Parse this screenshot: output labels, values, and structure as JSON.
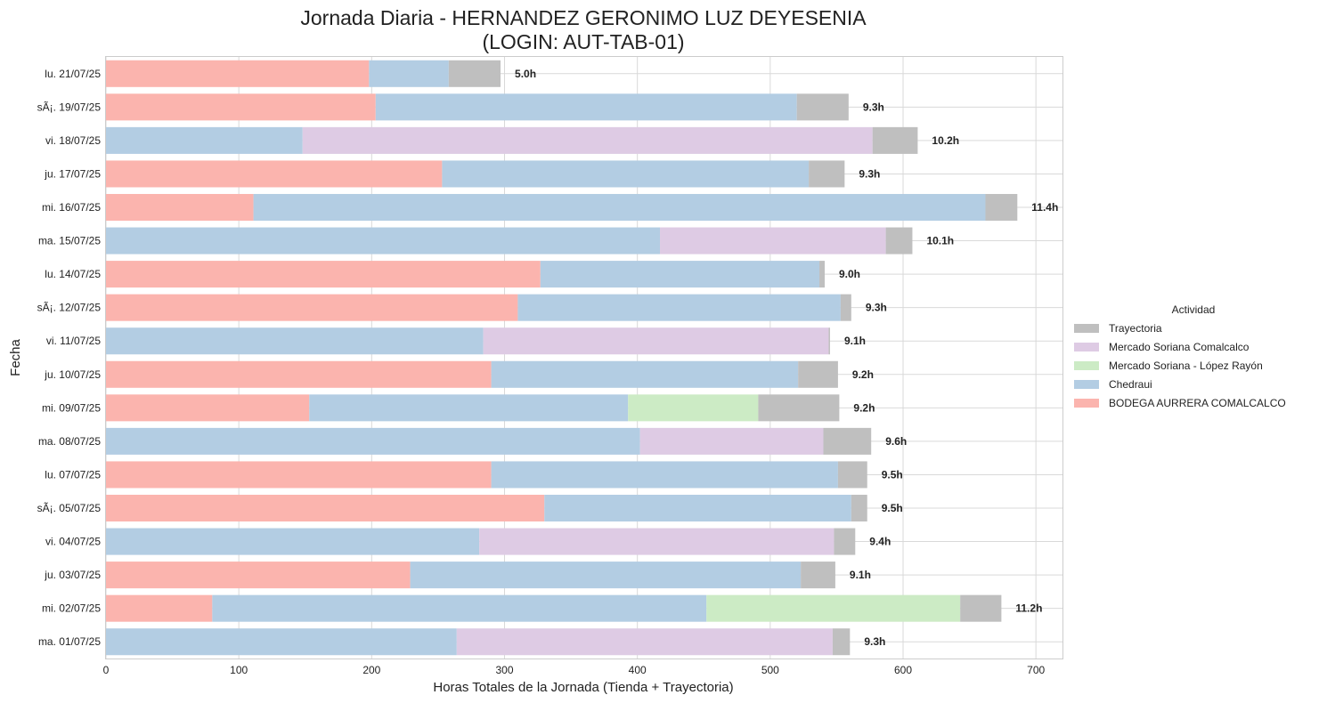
{
  "chart_data": {
    "type": "bar",
    "orientation": "horizontal",
    "stacked": true,
    "title": "Jornada Diaria - HERNANDEZ GERONIMO LUZ DEYESENIA",
    "subtitle": "(LOGIN: AUT-TAB-01)",
    "xlabel": "Horas Totales de la Jornada (Tienda + Trayectoria)",
    "ylabel": "Fecha",
    "xlim": [
      0,
      720
    ],
    "xticks": [
      0,
      100,
      200,
      300,
      400,
      500,
      600,
      700
    ],
    "grid": true,
    "legend_title": "Actividad",
    "legend_position": "center-right outside",
    "categories": [
      "lu. 21/07/25",
      "sÃ¡. 19/07/25",
      "vi. 18/07/25",
      "ju. 17/07/25",
      "mi. 16/07/25",
      "ma. 15/07/25",
      "lu. 14/07/25",
      "sÃ¡. 12/07/25",
      "vi. 11/07/25",
      "ju. 10/07/25",
      "mi. 09/07/25",
      "ma. 08/07/25",
      "lu. 07/07/25",
      "sÃ¡. 05/07/25",
      "vi. 04/07/25",
      "ju. 03/07/25",
      "mi. 02/07/25",
      "ma. 01/07/25"
    ],
    "series": [
      {
        "name": "BODEGA AURRERA COMALCALCO",
        "color": "#fbb4ae",
        "values": [
          198,
          203,
          0,
          253,
          111,
          0,
          327,
          310,
          0,
          290,
          153,
          0,
          290,
          330,
          0,
          229,
          80,
          0
        ]
      },
      {
        "name": "Chedraui",
        "color": "#b3cde3",
        "values": [
          60,
          317,
          148,
          276,
          551,
          417,
          210,
          243,
          284,
          231,
          240,
          402,
          261,
          231,
          281,
          294,
          372,
          264
        ]
      },
      {
        "name": "Mercado Soriana - López Rayón",
        "color": "#ccebc5",
        "values": [
          0,
          0,
          0,
          0,
          0,
          0,
          0,
          0,
          0,
          0,
          98,
          0,
          0,
          0,
          0,
          0,
          191,
          0
        ]
      },
      {
        "name": "Mercado Soriana Comalcalco",
        "color": "#decbe4",
        "values": [
          0,
          0,
          429,
          0,
          0,
          170,
          0,
          0,
          260,
          0,
          0,
          138,
          0,
          0,
          267,
          0,
          0,
          283
        ]
      },
      {
        "name": "Trayectoria",
        "color": "#bfbfbf",
        "values": [
          39,
          39,
          34,
          27,
          24,
          20,
          4,
          8,
          1,
          30,
          61,
          36,
          22,
          12,
          16,
          26,
          31,
          13
        ]
      }
    ],
    "legend_order": [
      "Trayectoria",
      "Mercado Soriana Comalcalco",
      "Mercado Soriana - López Rayón",
      "Chedraui",
      "BODEGA AURRERA COMALCALCO"
    ],
    "total_labels": [
      "5.0h",
      "9.3h",
      "10.2h",
      "9.3h",
      "11.4h",
      "10.1h",
      "9.0h",
      "9.3h",
      "9.1h",
      "9.2h",
      "9.2h",
      "9.6h",
      "9.5h",
      "9.5h",
      "9.4h",
      "9.1h",
      "11.2h",
      "9.3h"
    ]
  }
}
